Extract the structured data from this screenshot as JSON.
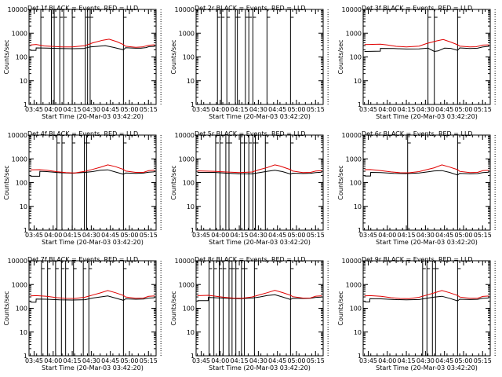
{
  "colors": {
    "events": "#000000",
    "lld": "#e00000",
    "axis": "#000000",
    "background": "#ffffff"
  },
  "common": {
    "xlabel": "Start Time (20-Mar-03 03:42:20)",
    "ylabel": "Counts/sec",
    "ytick_labels": [
      "1",
      "10",
      "100",
      "1000",
      "10000"
    ],
    "ytick_values": [
      1,
      10,
      100,
      1000,
      10000
    ],
    "xtick_labels": [
      "03:45",
      "04:00",
      "04:15",
      "04:30",
      "04:45",
      "05:00",
      "05:15"
    ],
    "xtick_minutes": [
      0,
      15,
      30,
      45,
      60,
      75,
      90
    ]
  },
  "chart_data": [
    {
      "type": "line",
      "title": "Det 1f BLACK = Events, RED = LLD",
      "xlabel": "Start Time (20-Mar-03 03:42:20)",
      "ylabel": "Counts/sec",
      "yscale": "log",
      "ylim": [
        1,
        10000
      ],
      "x_unit": "minutes after 03:45",
      "vlines": [
        5.3,
        13.6,
        15.8,
        20.2,
        23.3,
        30.0,
        40.3,
        42.1,
        44.1,
        70.3
      ],
      "dotted_vline": 99.8,
      "series": [
        {
          "name": "Events",
          "color": "#000000",
          "x": [
            -3,
            1.5,
            1.6,
            10,
            20,
            30,
            39,
            44,
            50,
            56,
            63,
            70.3,
            72,
            80,
            84,
            88,
            90.2,
            95
          ],
          "y": [
            190,
            190,
            240,
            235,
            225,
            222,
            225,
            262,
            280,
            300,
            250,
            200,
            245,
            232,
            232,
            248,
            270,
            280
          ]
        },
        {
          "name": "LLD",
          "color": "#e00000",
          "x": [
            -3,
            1.6,
            8,
            15,
            22,
            30,
            40,
            46,
            54,
            59,
            65,
            70.3,
            72,
            80,
            85,
            90.2,
            95
          ],
          "y": [
            320,
            335,
            290,
            278,
            265,
            262,
            300,
            390,
            505,
            560,
            440,
            330,
            282,
            255,
            262,
            312,
            325
          ]
        }
      ]
    },
    {
      "type": "line",
      "title": "Det 2r BLACK = Events, RED = LLD",
      "xlabel": "Start Time (20-Mar-03 03:42:20)",
      "ylabel": "Counts/sec",
      "yscale": "log",
      "ylim": [
        1,
        10000
      ],
      "x_unit": "minutes after 03:45",
      "vlines": [
        12.8,
        15.9,
        20.2,
        26.9,
        28.5,
        34.8,
        37.5,
        40.7,
        51.8,
        70.3
      ],
      "dotted_vline": 99.8,
      "series": []
    },
    {
      "type": "line",
      "title": "Det 3f BLACK = Events, RED = LLD",
      "xlabel": "Start Time (20-Mar-03 03:42:20)",
      "ylabel": "Counts/sec",
      "yscale": "log",
      "ylim": [
        1,
        10000
      ],
      "x_unit": "minutes after 03:45",
      "vlines": [
        47.0,
        52.0,
        70.3
      ],
      "dotted_vline": 99.8,
      "series": [
        {
          "name": "Events",
          "color": "#000000",
          "x": [
            -3,
            9.5,
            9.6,
            20,
            30,
            40,
            47,
            52,
            55,
            60,
            65,
            70.3,
            72,
            80,
            86,
            90.2,
            95
          ],
          "y": [
            170,
            175,
            230,
            225,
            215,
            218,
            235,
            170,
            180,
            235,
            230,
            190,
            240,
            228,
            232,
            262,
            280
          ]
        },
        {
          "name": "LLD",
          "color": "#e00000",
          "x": [
            -3,
            9.6,
            15,
            22,
            30,
            40,
            46,
            54,
            59,
            65,
            70.3,
            72,
            80,
            85,
            90.2,
            95
          ],
          "y": [
            330,
            345,
            318,
            280,
            262,
            285,
            368,
            475,
            540,
            420,
            325,
            285,
            262,
            268,
            315,
            322
          ]
        }
      ]
    },
    {
      "type": "line",
      "title": "Det 4f BLACK = Events, RED = LLD",
      "xlabel": "Start Time (20-Mar-03 03:42:20)",
      "ylabel": "Counts/sec",
      "yscale": "log",
      "ylim": [
        1,
        10000
      ],
      "x_unit": "minutes after 03:45",
      "vlines": [
        18.0,
        21.9,
        30.0,
        39.5,
        41.4,
        70.3
      ],
      "dotted_vline": 99.8,
      "series": [
        {
          "name": "Events",
          "color": "#000000",
          "x": [
            -3,
            4.4,
            4.5,
            10,
            20,
            30,
            40,
            46,
            52,
            58,
            64,
            70.3,
            72,
            80,
            86,
            90.2,
            95
          ],
          "y": [
            185,
            185,
            300,
            290,
            260,
            250,
            270,
            290,
            330,
            345,
            280,
            225,
            255,
            245,
            252,
            275,
            285
          ]
        },
        {
          "name": "LLD",
          "color": "#e00000",
          "x": [
            -3,
            4.5,
            10,
            18,
            25,
            32,
            40,
            46,
            52,
            58,
            64,
            70.3,
            72,
            80,
            86,
            90.2,
            95
          ],
          "y": [
            345,
            350,
            330,
            288,
            262,
            255,
            300,
            360,
            440,
            560,
            470,
            360,
            305,
            268,
            270,
            318,
            335
          ]
        }
      ]
    },
    {
      "type": "line",
      "title": "Det 5r BLACK = Events, RED = LLD",
      "xlabel": "Start Time (20-Mar-03 03:42:20)",
      "ylabel": "Counts/sec",
      "yscale": "log",
      "ylim": [
        1,
        10000
      ],
      "x_unit": "minutes after 03:45",
      "vlines": [
        11.4,
        14.8,
        19.4,
        21.9,
        31.0,
        34.0,
        37.5,
        40.7,
        42.6,
        50.5,
        70.3
      ],
      "dotted_vline": 99.8,
      "series": [
        {
          "name": "Events",
          "color": "#000000",
          "x": [
            -3,
            10,
            20,
            30,
            40,
            46,
            52,
            58,
            64,
            70.3,
            72,
            80,
            86,
            90.2,
            95
          ],
          "y": [
            270,
            270,
            250,
            235,
            235,
            265,
            300,
            330,
            290,
            230,
            250,
            242,
            248,
            262,
            275
          ]
        },
        {
          "name": "LLD",
          "color": "#e00000",
          "x": [
            -3,
            10,
            20,
            30,
            40,
            46,
            52,
            58,
            62,
            70.3,
            72,
            80,
            86,
            90.2,
            95
          ],
          "y": [
            312,
            300,
            280,
            262,
            280,
            355,
            430,
            560,
            500,
            350,
            305,
            265,
            270,
            305,
            318
          ]
        }
      ]
    },
    {
      "type": "line",
      "title": "Det 6r BLACK = Events, RED = LLD",
      "xlabel": "Start Time (20-Mar-03 03:42:20)",
      "ylabel": "Counts/sec",
      "yscale": "log",
      "ylim": [
        1,
        10000
      ],
      "x_unit": "minutes after 03:45",
      "vlines": [
        31.0,
        70.3
      ],
      "dotted_vline": 99.8,
      "series": [
        {
          "name": "Events",
          "color": "#000000",
          "x": [
            -3,
            1.8,
            1.9,
            10,
            20,
            30,
            40,
            46,
            52,
            58,
            64,
            70.3,
            72,
            80,
            86,
            90.2,
            95
          ],
          "y": [
            190,
            190,
            270,
            262,
            245,
            240,
            255,
            280,
            310,
            320,
            270,
            210,
            245,
            235,
            240,
            265,
            275
          ]
        },
        {
          "name": "LLD",
          "color": "#e00000",
          "x": [
            -3,
            1.9,
            10,
            18,
            25,
            32,
            40,
            46,
            52,
            58,
            64,
            70.3,
            72,
            80,
            86,
            90.2,
            95
          ],
          "y": [
            350,
            355,
            320,
            282,
            260,
            258,
            290,
            350,
            420,
            560,
            450,
            350,
            298,
            265,
            268,
            318,
            330
          ]
        }
      ]
    },
    {
      "type": "line",
      "title": "Det 7f BLACK = Events, RED = LLD",
      "xlabel": "Start Time (20-Mar-03 03:42:20)",
      "ylabel": "Counts/sec",
      "yscale": "log",
      "ylim": [
        1,
        10000
      ],
      "x_unit": "minutes after 03:45",
      "vlines": [
        5.8,
        10.6,
        16.9,
        21.5,
        24.8,
        31.0,
        38.7,
        43.1,
        70.3
      ],
      "dotted_vline": 99.8,
      "series": [
        {
          "name": "Events",
          "color": "#000000",
          "x": [
            -3,
            1.5,
            1.6,
            10,
            20,
            30,
            40,
            46,
            52,
            58,
            64,
            70.3,
            72,
            80,
            86,
            90.2,
            95
          ],
          "y": [
            180,
            180,
            245,
            240,
            225,
            222,
            230,
            268,
            300,
            330,
            270,
            215,
            250,
            240,
            246,
            268,
            278
          ]
        },
        {
          "name": "LLD",
          "color": "#e00000",
          "x": [
            -3,
            1.6,
            10,
            18,
            25,
            32,
            40,
            46,
            52,
            58,
            64,
            70.3,
            72,
            80,
            86,
            90.2,
            95
          ],
          "y": [
            330,
            340,
            318,
            280,
            260,
            258,
            292,
            360,
            440,
            560,
            450,
            345,
            300,
            265,
            268,
            318,
            330
          ]
        }
      ]
    },
    {
      "type": "line",
      "title": "Det 8r BLACK = Events, RED = LLD",
      "xlabel": "Start Time (20-Mar-03 03:42:20)",
      "ylabel": "Counts/sec",
      "yscale": "log",
      "ylim": [
        1,
        10000
      ],
      "x_unit": "minutes after 03:45",
      "vlines": [
        6.2,
        10.0,
        14.2,
        17.3,
        21.9,
        24.3,
        27.3,
        31.7,
        34.0,
        41.9,
        70.3
      ],
      "dotted_vline": 99.8,
      "series": [
        {
          "name": "Events",
          "color": "#000000",
          "x": [
            -3,
            5.5,
            5.6,
            10,
            20,
            30,
            40,
            46,
            52,
            58,
            64,
            70.3,
            72,
            80,
            86,
            90.2,
            95
          ],
          "y": [
            210,
            210,
            285,
            280,
            262,
            255,
            270,
            300,
            345,
            370,
            300,
            235,
            265,
            258,
            262,
            288,
            298
          ]
        },
        {
          "name": "LLD",
          "color": "#e00000",
          "x": [
            -3,
            5.6,
            10,
            18,
            25,
            32,
            40,
            46,
            52,
            58,
            64,
            70.3,
            72,
            80,
            86,
            90.2,
            95
          ],
          "y": [
            340,
            350,
            328,
            290,
            268,
            262,
            300,
            368,
            450,
            570,
            460,
            355,
            308,
            270,
            272,
            322,
            336
          ]
        }
      ]
    },
    {
      "type": "line",
      "title": "Det 9r BLACK = Events, RED = LLD",
      "xlabel": "Start Time (20-Mar-03 03:42:20)",
      "ylabel": "Counts/sec",
      "yscale": "log",
      "ylim": [
        1,
        10000
      ],
      "x_unit": "minutes after 03:45",
      "vlines": [
        42.8,
        46.2,
        50.5,
        53.0,
        70.3
      ],
      "dotted_vline": 99.8,
      "series": [
        {
          "name": "Events",
          "color": "#000000",
          "x": [
            -3,
            1.2,
            1.3,
            10,
            20,
            30,
            40,
            46,
            52,
            58,
            64,
            70.3,
            72,
            80,
            86,
            90.2,
            95
          ],
          "y": [
            185,
            185,
            255,
            250,
            232,
            225,
            232,
            262,
            295,
            320,
            262,
            205,
            240,
            232,
            238,
            262,
            272
          ]
        },
        {
          "name": "LLD",
          "color": "#e00000",
          "x": [
            -3,
            1.3,
            10,
            18,
            25,
            32,
            40,
            46,
            52,
            58,
            64,
            70.3,
            72,
            80,
            86,
            90.2,
            95
          ],
          "y": [
            332,
            340,
            318,
            280,
            258,
            255,
            290,
            360,
            445,
            560,
            450,
            345,
            298,
            262,
            265,
            315,
            328
          ]
        }
      ]
    }
  ]
}
